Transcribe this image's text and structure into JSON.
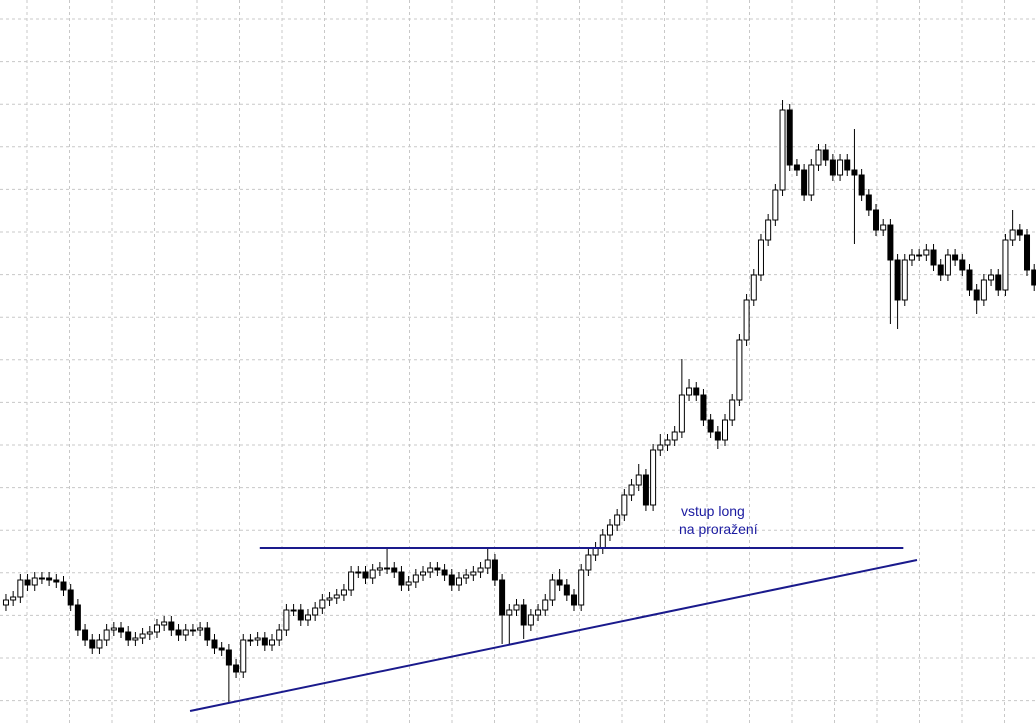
{
  "chart_data": {
    "type": "candlestick",
    "annotation": [
      "vstup long",
      "na proražení"
    ],
    "annotation_color": "#1a1aa0",
    "up_color": "#ffffff",
    "down_color": "#000000",
    "edge_color": "#000000",
    "grid": true,
    "xlim": [
      -0.83,
      143.25
    ],
    "ylim": [
      0,
      724
    ],
    "open": [
      119,
      124,
      127,
      144,
      139,
      146,
      146,
      144,
      142,
      134,
      119,
      94,
      84,
      76,
      84,
      94,
      96,
      92,
      84,
      86,
      90,
      92,
      99,
      102,
      94,
      89,
      94,
      94,
      96,
      84,
      76,
      74,
      59,
      52,
      84,
      84,
      86,
      79,
      84,
      94,
      114,
      114,
      104,
      109,
      116,
      124,
      126,
      129,
      134,
      152,
      152,
      146,
      154,
      156,
      156,
      152,
      139,
      142,
      149,
      152,
      156,
      154,
      149,
      139,
      146,
      149,
      152,
      156,
      164,
      144,
      109,
      114,
      119,
      99,
      109,
      114,
      124,
      144,
      139,
      129,
      119,
      154,
      169,
      176,
      189,
      199,
      209,
      229,
      239,
      249,
      219,
      274,
      279,
      284,
      292,
      329,
      336,
      329,
      304,
      292,
      284,
      304,
      324,
      384,
      424,
      449,
      484,
      504,
      534,
      614,
      559,
      554,
      529,
      559,
      574,
      564,
      549,
      564,
      554,
      549,
      529,
      514,
      494,
      499,
      464,
      424,
      464,
      469,
      469,
      474,
      459,
      449,
      469,
      464,
      454,
      434,
      424,
      444,
      449,
      434,
      484,
      494,
      489,
      454
    ],
    "high": [
      130,
      133,
      150,
      150,
      152,
      152,
      152,
      150,
      148,
      140,
      125,
      100,
      90,
      90,
      100,
      102,
      102,
      98,
      92,
      96,
      98,
      105,
      108,
      108,
      100,
      100,
      100,
      102,
      102,
      90,
      82,
      80,
      65,
      90,
      90,
      92,
      92,
      90,
      100,
      120,
      120,
      120,
      115,
      122,
      130,
      132,
      135,
      140,
      158,
      158,
      158,
      160,
      162,
      176,
      162,
      158,
      148,
      155,
      158,
      162,
      162,
      160,
      155,
      152,
      155,
      158,
      162,
      176,
      170,
      150,
      120,
      125,
      125,
      115,
      120,
      130,
      150,
      155,
      145,
      135,
      160,
      175,
      182,
      195,
      205,
      215,
      235,
      245,
      260,
      255,
      280,
      290,
      290,
      298,
      365,
      345,
      342,
      335,
      310,
      298,
      310,
      330,
      390,
      430,
      455,
      490,
      510,
      540,
      624,
      620,
      565,
      560,
      565,
      580,
      580,
      570,
      570,
      570,
      595,
      555,
      535,
      520,
      505,
      505,
      470,
      470,
      475,
      475,
      480,
      480,
      465,
      475,
      475,
      470,
      460,
      440,
      450,
      455,
      455,
      490,
      514,
      500,
      495,
      460
    ],
    "low": [
      113,
      118,
      121,
      133,
      133,
      140,
      138,
      136,
      128,
      113,
      88,
      78,
      70,
      70,
      78,
      88,
      86,
      78,
      78,
      80,
      84,
      86,
      93,
      88,
      83,
      83,
      88,
      88,
      78,
      70,
      68,
      22,
      46,
      46,
      78,
      78,
      73,
      73,
      78,
      88,
      108,
      98,
      98,
      103,
      110,
      118,
      120,
      123,
      128,
      146,
      140,
      140,
      148,
      150,
      146,
      133,
      133,
      136,
      143,
      146,
      148,
      143,
      133,
      133,
      140,
      143,
      146,
      150,
      138,
      80,
      80,
      108,
      85,
      93,
      103,
      108,
      118,
      133,
      123,
      113,
      113,
      148,
      163,
      170,
      183,
      193,
      203,
      223,
      233,
      213,
      213,
      268,
      273,
      278,
      286,
      323,
      323,
      298,
      286,
      275,
      278,
      298,
      318,
      378,
      418,
      443,
      478,
      498,
      528,
      553,
      548,
      523,
      523,
      553,
      558,
      543,
      543,
      548,
      480,
      523,
      508,
      488,
      488,
      400,
      395,
      418,
      458,
      463,
      463,
      453,
      443,
      443,
      458,
      448,
      428,
      410,
      418,
      438,
      428,
      428,
      478,
      483,
      448,
      433
    ],
    "close": [
      124,
      127,
      144,
      139,
      146,
      146,
      144,
      142,
      134,
      119,
      94,
      84,
      76,
      84,
      94,
      96,
      92,
      84,
      86,
      90,
      92,
      99,
      102,
      94,
      89,
      94,
      94,
      96,
      84,
      76,
      74,
      59,
      52,
      84,
      84,
      86,
      79,
      84,
      94,
      114,
      114,
      104,
      109,
      116,
      124,
      126,
      129,
      134,
      152,
      152,
      146,
      154,
      156,
      156,
      152,
      139,
      142,
      149,
      152,
      156,
      154,
      149,
      139,
      146,
      149,
      152,
      156,
      164,
      144,
      109,
      114,
      119,
      99,
      109,
      114,
      124,
      144,
      139,
      129,
      119,
      154,
      169,
      176,
      189,
      199,
      209,
      229,
      239,
      249,
      219,
      274,
      279,
      284,
      292,
      329,
      336,
      329,
      304,
      292,
      284,
      304,
      324,
      384,
      424,
      449,
      484,
      504,
      534,
      614,
      559,
      554,
      529,
      559,
      574,
      564,
      549,
      564,
      554,
      549,
      529,
      514,
      494,
      499,
      464,
      424,
      464,
      469,
      469,
      474,
      459,
      449,
      469,
      464,
      454,
      434,
      424,
      444,
      449,
      434,
      484,
      494,
      489,
      454,
      439
    ],
    "lines": [
      {
        "x": [
          35.3,
          124.8
        ],
        "values": [
          176,
          176
        ],
        "color": "#1a1a8c"
      },
      {
        "x": [
          25.6,
          126.7
        ],
        "values": [
          13,
          164
        ],
        "color": "#1a1a8c"
      }
    ]
  }
}
